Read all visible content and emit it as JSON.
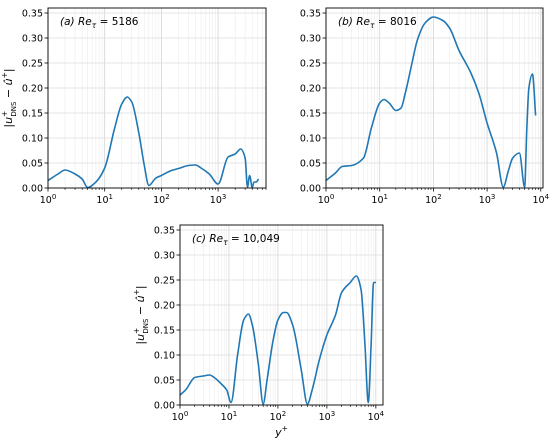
{
  "chart_data": [
    {
      "type": "line",
      "panel_label": "(a)",
      "annotation": "Re_τ = 5186",
      "annotation_parts": {
        "symbol": "Re",
        "sub": "τ",
        "rest": " = 5186"
      },
      "xlabel": "",
      "ylabel": "|u⁺_DNS − û⁺|",
      "xscale": "log",
      "xlim": [
        1,
        7000
      ],
      "ylim": [
        0,
        0.36
      ],
      "xticks": [
        1,
        10,
        100,
        1000
      ],
      "xtick_labels": [
        "10^0",
        "10^1",
        "10^2",
        "10^3"
      ],
      "yticks": [
        0,
        0.05,
        0.1,
        0.15,
        0.2,
        0.25,
        0.3,
        0.35
      ],
      "ytick_labels": [
        "0.00",
        "0.05",
        "0.10",
        "0.15",
        "0.20",
        "0.25",
        "0.30",
        "0.35"
      ],
      "grid": true,
      "color": "#1f77b4",
      "x": [
        1,
        1.5,
        2,
        3,
        4,
        5,
        7,
        10,
        15,
        20,
        25,
        30,
        40,
        50,
        60,
        80,
        100,
        150,
        200,
        300,
        400,
        500,
        700,
        1000,
        1500,
        2000,
        2500,
        3000,
        3300,
        3600,
        4000,
        4300,
        4700,
        5186
      ],
      "y": [
        0.015,
        0.028,
        0.036,
        0.028,
        0.018,
        0.001,
        0.012,
        0.04,
        0.12,
        0.168,
        0.182,
        0.172,
        0.11,
        0.045,
        0.005,
        0.02,
        0.025,
        0.035,
        0.039,
        0.045,
        0.046,
        0.04,
        0.028,
        0.008,
        0.062,
        0.068,
        0.078,
        0.06,
        0.002,
        0.025,
        0.001,
        0.012,
        0.012,
        0.018
      ]
    },
    {
      "type": "line",
      "panel_label": "(b)",
      "annotation": "Re_τ = 8016",
      "annotation_parts": {
        "symbol": "Re",
        "sub": "τ",
        "rest": " = 8016"
      },
      "xlabel": "",
      "ylabel": "",
      "xscale": "log",
      "xlim": [
        1,
        11000
      ],
      "ylim": [
        0,
        0.36
      ],
      "xticks": [
        1,
        10,
        100,
        1000,
        10000
      ],
      "xtick_labels": [
        "10^0",
        "10^1",
        "10^2",
        "10^3",
        "10^4"
      ],
      "yticks": [
        0,
        0.05,
        0.1,
        0.15,
        0.2,
        0.25,
        0.3,
        0.35
      ],
      "ytick_labels": [
        "0.00",
        "0.05",
        "0.10",
        "0.15",
        "0.20",
        "0.25",
        "0.30",
        "0.35"
      ],
      "grid": true,
      "color": "#1f77b4",
      "x": [
        1,
        1.5,
        2,
        3,
        5,
        7,
        10,
        12,
        15,
        20,
        25,
        30,
        40,
        50,
        70,
        100,
        150,
        200,
        300,
        500,
        700,
        1000,
        1500,
        2000,
        2500,
        3000,
        4000,
        5000,
        5500,
        6000,
        7000,
        8016
      ],
      "y": [
        0.015,
        0.03,
        0.043,
        0.045,
        0.06,
        0.12,
        0.17,
        0.177,
        0.17,
        0.155,
        0.16,
        0.19,
        0.25,
        0.295,
        0.33,
        0.342,
        0.335,
        0.32,
        0.275,
        0.23,
        0.19,
        0.13,
        0.07,
        0.002,
        0.035,
        0.06,
        0.07,
        0.002,
        0.12,
        0.2,
        0.228,
        0.145
      ]
    },
    {
      "type": "line",
      "panel_label": "(c)",
      "annotation": "Re_τ = 10,049",
      "annotation_parts": {
        "symbol": "Re",
        "sub": "τ",
        "rest": " = 10,049"
      },
      "xlabel": "y⁺",
      "ylabel": "|u⁺_DNS − û⁺|",
      "xscale": "log",
      "xlim": [
        1,
        14000
      ],
      "ylim": [
        0,
        0.36
      ],
      "xticks": [
        1,
        10,
        100,
        1000,
        10000
      ],
      "xtick_labels": [
        "10^0",
        "10^1",
        "10^2",
        "10^3",
        "10^4"
      ],
      "yticks": [
        0,
        0.05,
        0.1,
        0.15,
        0.2,
        0.25,
        0.3,
        0.35
      ],
      "ytick_labels": [
        "0.00",
        "0.05",
        "0.10",
        "0.15",
        "0.20",
        "0.25",
        "0.30",
        "0.35"
      ],
      "grid": true,
      "color": "#1f77b4",
      "x": [
        1,
        1.3,
        2,
        3,
        4,
        5,
        7,
        9,
        11,
        15,
        20,
        25,
        30,
        40,
        50,
        60,
        80,
        100,
        130,
        150,
        200,
        300,
        400,
        500,
        700,
        1000,
        1500,
        2000,
        3000,
        4000,
        5000,
        6000,
        7000,
        8000,
        9000,
        10049
      ],
      "y": [
        0.02,
        0.03,
        0.055,
        0.058,
        0.06,
        0.055,
        0.042,
        0.03,
        0.005,
        0.1,
        0.17,
        0.182,
        0.16,
        0.08,
        0.002,
        0.05,
        0.13,
        0.17,
        0.185,
        0.185,
        0.16,
        0.07,
        0.002,
        0.03,
        0.09,
        0.14,
        0.18,
        0.225,
        0.245,
        0.258,
        0.23,
        0.12,
        0.005,
        0.12,
        0.245,
        0.245
      ]
    }
  ]
}
